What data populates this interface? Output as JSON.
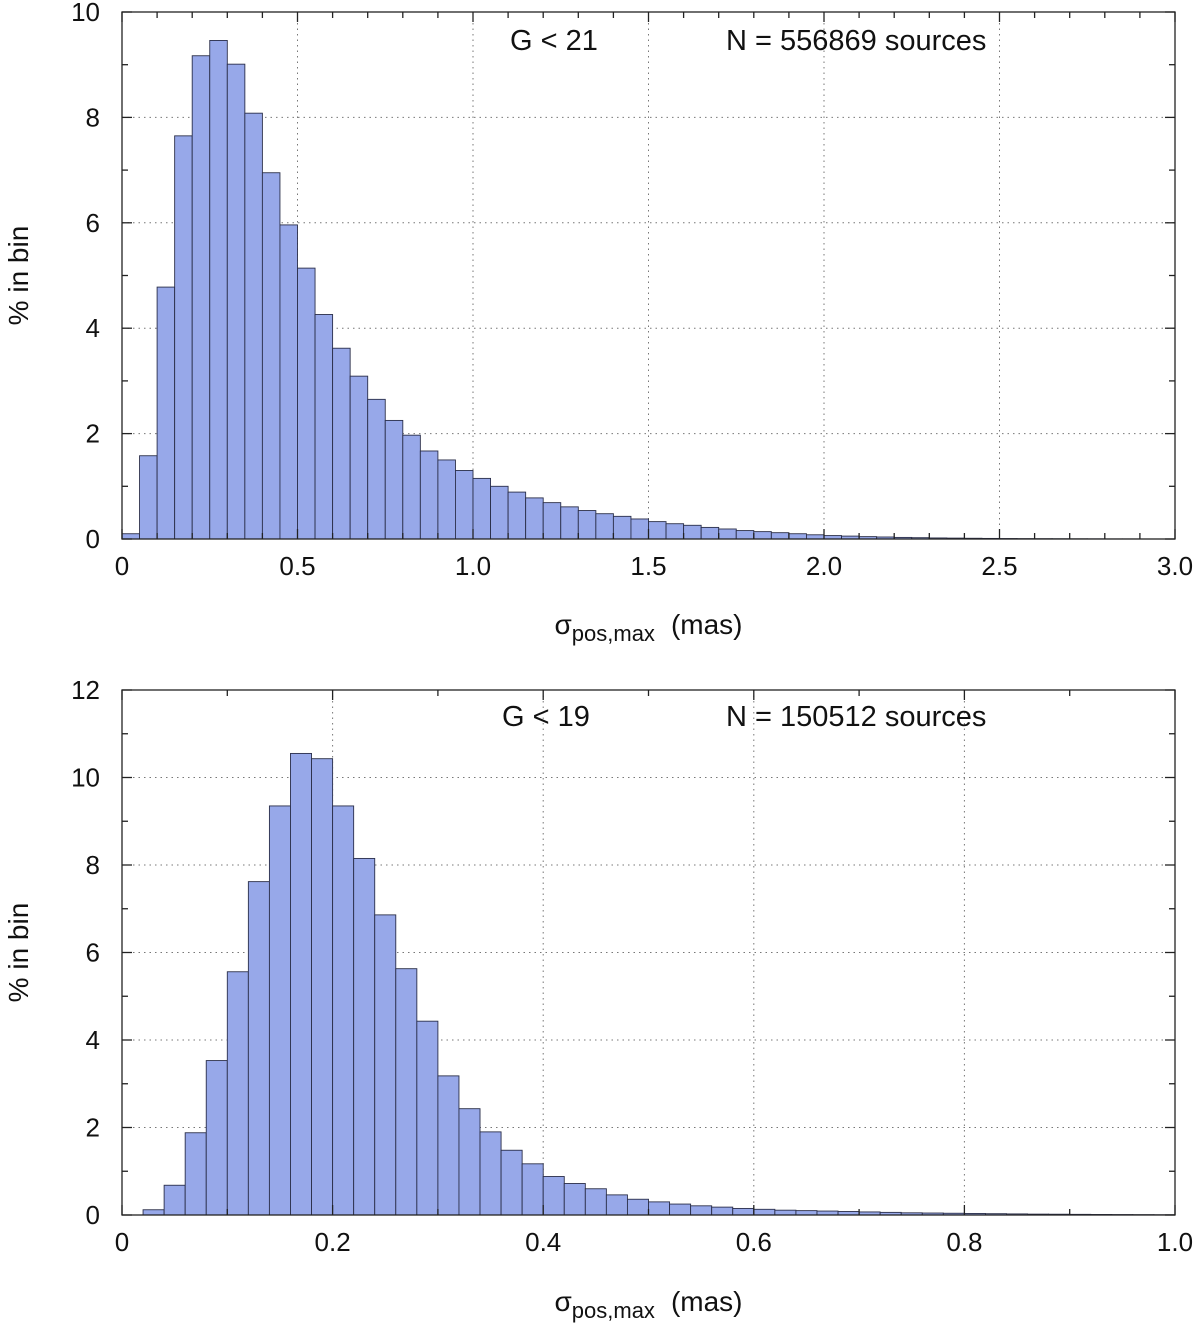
{
  "chart_data": [
    {
      "type": "bar",
      "annotation_g": "G  <  21",
      "annotation_n": "N = 556869  sources",
      "xlabel": "σ",
      "xlabel_sub": "pos,max",
      "xlabel_unit": "(mas)",
      "ylabel": "% in bin",
      "xlim": [
        0,
        3.0
      ],
      "ylim": [
        0,
        10
      ],
      "xticks": [
        0,
        0.5,
        1.0,
        1.5,
        2.0,
        2.5,
        3.0
      ],
      "xtick_labels": [
        "0",
        "0.5",
        "1.0",
        "1.5",
        "2.0",
        "2.5",
        "3.0"
      ],
      "xminor_step": 0.1,
      "yticks": [
        0,
        2,
        4,
        6,
        8,
        10
      ],
      "ytick_labels": [
        "0",
        "2",
        "4",
        "6",
        "8",
        "10"
      ],
      "yminor_step": 1,
      "bin_width": 0.05,
      "bin_start": 0,
      "values": [
        0.1,
        1.58,
        4.78,
        7.65,
        9.17,
        9.46,
        9.01,
        8.08,
        6.95,
        5.96,
        5.14,
        4.26,
        3.62,
        3.09,
        2.65,
        2.25,
        1.97,
        1.67,
        1.5,
        1.3,
        1.15,
        1.0,
        0.89,
        0.78,
        0.69,
        0.61,
        0.54,
        0.48,
        0.43,
        0.38,
        0.33,
        0.29,
        0.26,
        0.22,
        0.19,
        0.16,
        0.14,
        0.12,
        0.1,
        0.08,
        0.065,
        0.055,
        0.045,
        0.038,
        0.03,
        0.025,
        0.02,
        0.017,
        0.014,
        0.011,
        0.009,
        0.007,
        0.006,
        0.005,
        0.004,
        0.003,
        0.002,
        0.002,
        0.001,
        0.001
      ],
      "grid": true,
      "bar_color": "#97a8e9"
    },
    {
      "type": "bar",
      "annotation_g": "G  <  19",
      "annotation_n": "N = 150512 sources",
      "xlabel": "σ",
      "xlabel_sub": "pos,max",
      "xlabel_unit": "(mas)",
      "ylabel": "% in bin",
      "xlim": [
        0,
        1.0
      ],
      "ylim": [
        0,
        12
      ],
      "xticks": [
        0,
        0.2,
        0.4,
        0.6,
        0.8,
        1.0
      ],
      "xtick_labels": [
        "0",
        "0.2",
        "0.4",
        "0.6",
        "0.8",
        "1.0"
      ],
      "xminor_step": 0.1,
      "yticks": [
        0,
        2,
        4,
        6,
        8,
        10,
        12
      ],
      "ytick_labels": [
        "0",
        "2",
        "4",
        "6",
        "8",
        "10",
        "12"
      ],
      "yminor_step": 1,
      "bin_width": 0.02,
      "bin_start": 0,
      "values": [
        0.0,
        0.12,
        0.68,
        1.88,
        3.53,
        5.56,
        7.62,
        9.35,
        10.55,
        10.43,
        9.35,
        8.15,
        6.86,
        5.63,
        4.43,
        3.18,
        2.43,
        1.9,
        1.48,
        1.17,
        0.88,
        0.72,
        0.6,
        0.46,
        0.36,
        0.3,
        0.25,
        0.21,
        0.18,
        0.15,
        0.13,
        0.11,
        0.1,
        0.09,
        0.08,
        0.07,
        0.06,
        0.05,
        0.045,
        0.04,
        0.035,
        0.03,
        0.025,
        0.02,
        0.018,
        0.015,
        0.012,
        0.01,
        0.008,
        0.006
      ],
      "grid": true,
      "bar_color": "#97a8e9"
    }
  ]
}
